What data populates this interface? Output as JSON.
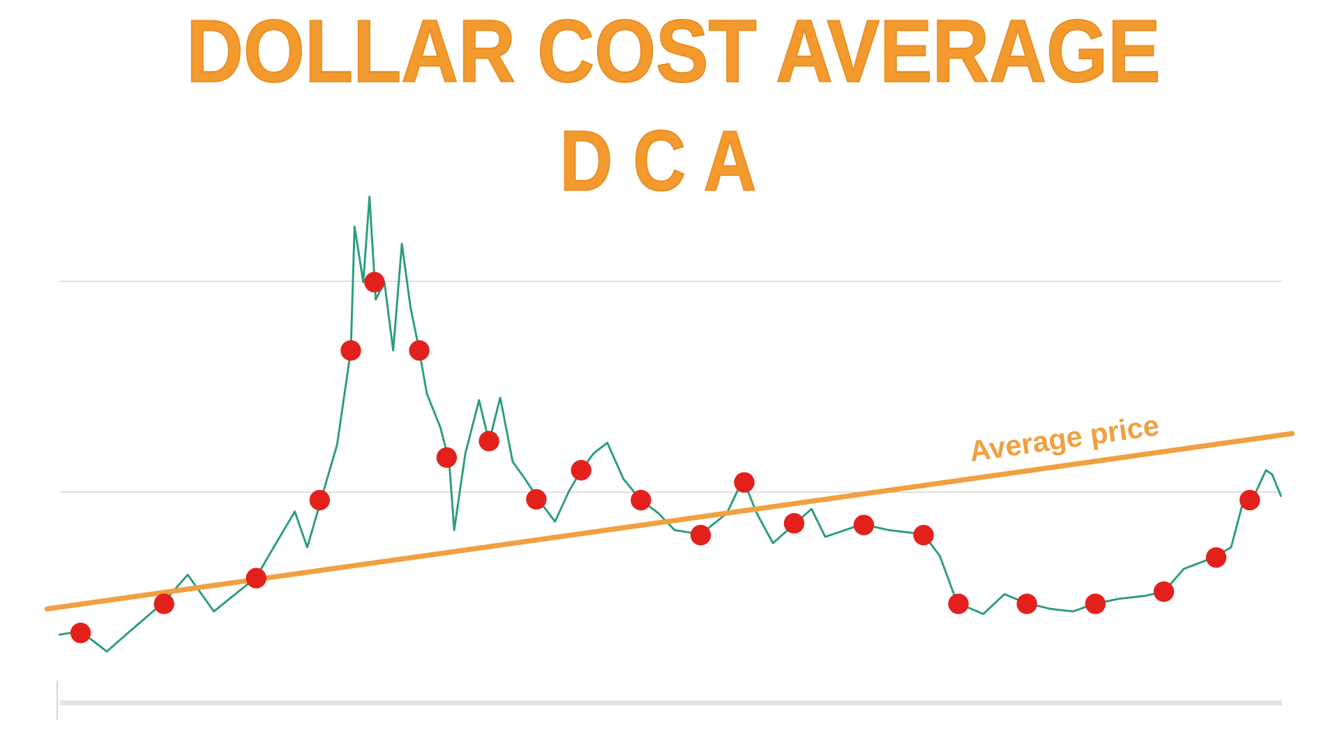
{
  "chart_data": {
    "type": "line",
    "title": "DOLLAR COST AVERAGE",
    "subtitle": "D C A",
    "xlim": [
      0,
      100
    ],
    "ylim": [
      0,
      125
    ],
    "yticks": [
      0,
      50,
      100
    ],
    "grid": true,
    "tick_labels": false,
    "series": [
      {
        "type": "line",
        "color": "#2a9d7c",
        "x": [
          1.0,
          2.7,
          4.8,
          6.5,
          9.3,
          11.3,
          13.4,
          16.8,
          18.2,
          19.9,
          20.9,
          22.0,
          23.3,
          24.4,
          24.7,
          25.4,
          25.9,
          26.4,
          27.1,
          27.8,
          28.5,
          29.2,
          29.9,
          30.5,
          31.6,
          32.3,
          32.7,
          33.6,
          34.7,
          35.5,
          36.4,
          37.4,
          38.4,
          39.5,
          40.8,
          41.9,
          42.9,
          43.9,
          45.0,
          46.3,
          47.7,
          49.1,
          50.4,
          52.5,
          54.6,
          55.9,
          57.0,
          58.3,
          60.1,
          61.4,
          62.5,
          65.5,
          67.6,
          70.4,
          71.7,
          73.1,
          75.2,
          76.9,
          78.6,
          80.6,
          82.4,
          84.1,
          86.1,
          88.2,
          89.7,
          91.3,
          93.7,
          95.1,
          96.1,
          97.1,
          97.9,
          98.4,
          99.1
        ],
        "values": [
          16.2,
          17.0,
          12.2,
          16.6,
          23.7,
          30.4,
          21.7,
          29.8,
          36.9,
          45.4,
          36.9,
          48.1,
          61.3,
          83.6,
          113.0,
          99.8,
          120.1,
          95.7,
          99.8,
          83.6,
          108.9,
          93.7,
          83.6,
          73.4,
          65.3,
          57.2,
          41.0,
          59.2,
          71.8,
          61.9,
          72.4,
          57.2,
          53.1,
          48.1,
          43.0,
          50.1,
          55.2,
          59.2,
          61.7,
          53.1,
          48.1,
          45.0,
          41.0,
          40.0,
          45.0,
          53.1,
          45.0,
          37.9,
          42.6,
          46.0,
          39.4,
          42.4,
          41.0,
          40.0,
          34.9,
          23.7,
          21.1,
          25.8,
          23.7,
          22.3,
          21.7,
          23.5,
          24.7,
          25.4,
          26.4,
          31.8,
          34.5,
          36.9,
          48.1,
          50.1,
          55.2,
          54.2,
          49.1
        ]
      },
      {
        "type": "line",
        "name": "Average price",
        "color": "#f0a040",
        "x": [
          0,
          100
        ],
        "values": [
          22.3,
          63.9
        ]
      },
      {
        "type": "scatter",
        "color": "#e3211c",
        "x": [
          2.7,
          9.4,
          16.8,
          21.9,
          24.4,
          26.3,
          29.9,
          32.1,
          35.5,
          39.3,
          42.9,
          47.7,
          52.5,
          56.0,
          60.0,
          65.6,
          70.4,
          73.2,
          78.7,
          84.2,
          89.7,
          93.9,
          96.6
        ],
        "values": [
          16.6,
          23.5,
          29.6,
          48.1,
          83.6,
          99.8,
          83.6,
          58.2,
          62.1,
          48.3,
          55.2,
          48.1,
          39.8,
          52.3,
          42.6,
          42.2,
          39.8,
          23.5,
          23.5,
          23.5,
          26.4,
          34.5,
          48.1
        ]
      }
    ]
  }
}
